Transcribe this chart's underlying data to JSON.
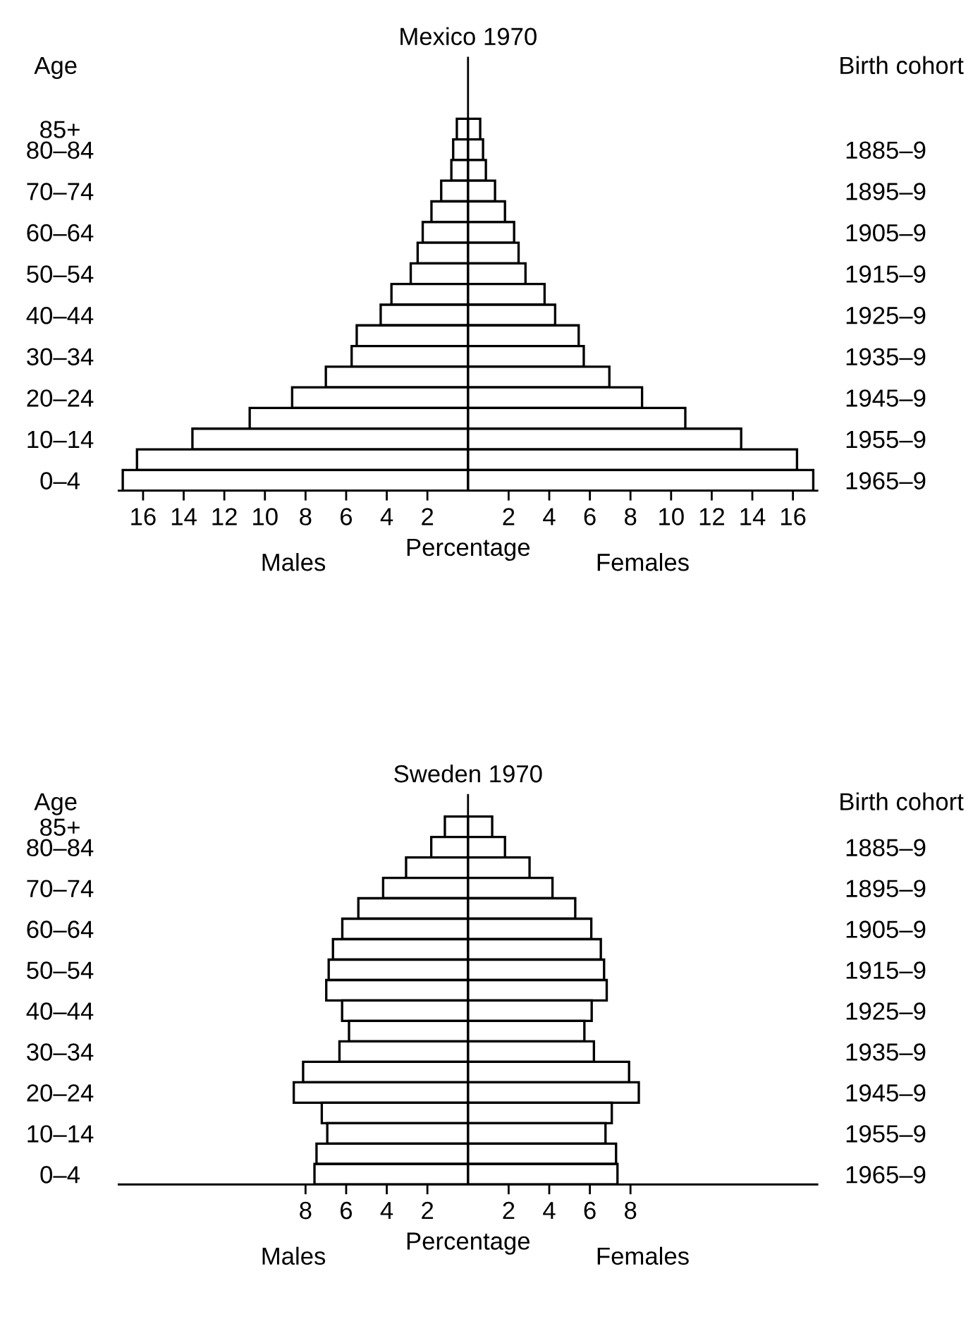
{
  "chart_data": [
    {
      "type": "bar",
      "orientation": "horizontal",
      "stacked": true,
      "title": "Mexico 1970",
      "xlabel": "Percentage",
      "ylabel": "Age",
      "y2label": "Birth cohort",
      "categories": [
        "85+",
        "80–84",
        null,
        "70–74",
        null,
        "60–64",
        null,
        "50–54",
        null,
        "40–44",
        null,
        "30–34",
        null,
        "20–24",
        null,
        "10–14",
        null,
        "0–4"
      ],
      "y2_categories": [
        null,
        "1885–9",
        null,
        "1895–9",
        null,
        "1905–9",
        null,
        "1915–9",
        null,
        "1925–9",
        null,
        "1935–9",
        null,
        "1945–9",
        null,
        "1955–9",
        null,
        "1965–9"
      ],
      "series": [
        {
          "name": "Males",
          "color": "#ffffff",
          "values": [
            -0.55,
            -0.73,
            -0.82,
            -1.32,
            -1.8,
            -2.23,
            -2.48,
            -2.82,
            -3.77,
            -4.3,
            -5.48,
            -5.73,
            -7.0,
            -8.66,
            -10.75,
            -13.57,
            -16.3,
            -17.0
          ]
        },
        {
          "name": "Females",
          "color": "#ffffff",
          "values": [
            0.6,
            0.74,
            0.88,
            1.33,
            1.82,
            2.27,
            2.49,
            2.83,
            3.77,
            4.29,
            5.45,
            5.7,
            6.96,
            8.57,
            10.7,
            13.45,
            16.2,
            17.0
          ]
        }
      ],
      "xlim": [
        -17.2,
        17.2
      ],
      "xticks": [
        {
          "value": -16,
          "label": "16"
        },
        {
          "value": -14,
          "label": "14"
        },
        {
          "value": -12,
          "label": "12"
        },
        {
          "value": -10,
          "label": "10"
        },
        {
          "value": -8,
          "label": "8"
        },
        {
          "value": -6,
          "label": "6"
        },
        {
          "value": -4,
          "label": "4"
        },
        {
          "value": -2,
          "label": "2"
        },
        2,
        4,
        6,
        8,
        10,
        12,
        14,
        16
      ],
      "ref_lines": [
        {
          "axis": "x",
          "value": 0,
          "color": "#000000"
        }
      ],
      "grid": false,
      "legend": false
    },
    {
      "type": "bar",
      "orientation": "horizontal",
      "stacked": true,
      "title": "Sweden 1970",
      "xlabel": "Percentage",
      "ylabel": "Age",
      "y2label": "Birth cohort",
      "categories": [
        "85+",
        "80–84",
        null,
        "70–74",
        null,
        "60–64",
        null,
        "50–54",
        null,
        "40–44",
        null,
        "30–34",
        null,
        "20–24",
        null,
        "10–14",
        null,
        "0–4"
      ],
      "y2_categories": [
        null,
        "1885–9",
        null,
        "1895–9",
        null,
        "1905–9",
        null,
        "1915–9",
        null,
        "1925–9",
        null,
        "1935–9",
        null,
        "1945–9",
        null,
        "1955–9",
        null,
        "1965–9"
      ],
      "series": [
        {
          "name": "Males",
          "color": "#ffffff",
          "values": [
            -1.14,
            -1.81,
            -3.05,
            -4.18,
            -5.4,
            -6.19,
            -6.65,
            -6.86,
            -6.98,
            -6.2,
            -5.86,
            -6.33,
            -8.12,
            -8.58,
            -7.2,
            -6.93,
            -7.46,
            -7.56
          ]
        },
        {
          "name": "Females",
          "color": "#ffffff",
          "values": [
            1.19,
            1.82,
            3.03,
            4.16,
            5.28,
            6.07,
            6.54,
            6.7,
            6.83,
            6.09,
            5.73,
            6.2,
            7.93,
            8.41,
            7.08,
            6.77,
            7.29,
            7.36
          ]
        }
      ],
      "xlim": [
        -17.2,
        17.2
      ],
      "xticks": [
        {
          "value": -8,
          "label": "8"
        },
        {
          "value": -6,
          "label": "6"
        },
        {
          "value": -4,
          "label": "4"
        },
        {
          "value": -2,
          "label": "2"
        },
        2,
        4,
        6,
        8
      ],
      "ref_lines": [
        {
          "axis": "x",
          "value": 0,
          "color": "#000000"
        }
      ],
      "grid": false,
      "legend": false
    }
  ]
}
